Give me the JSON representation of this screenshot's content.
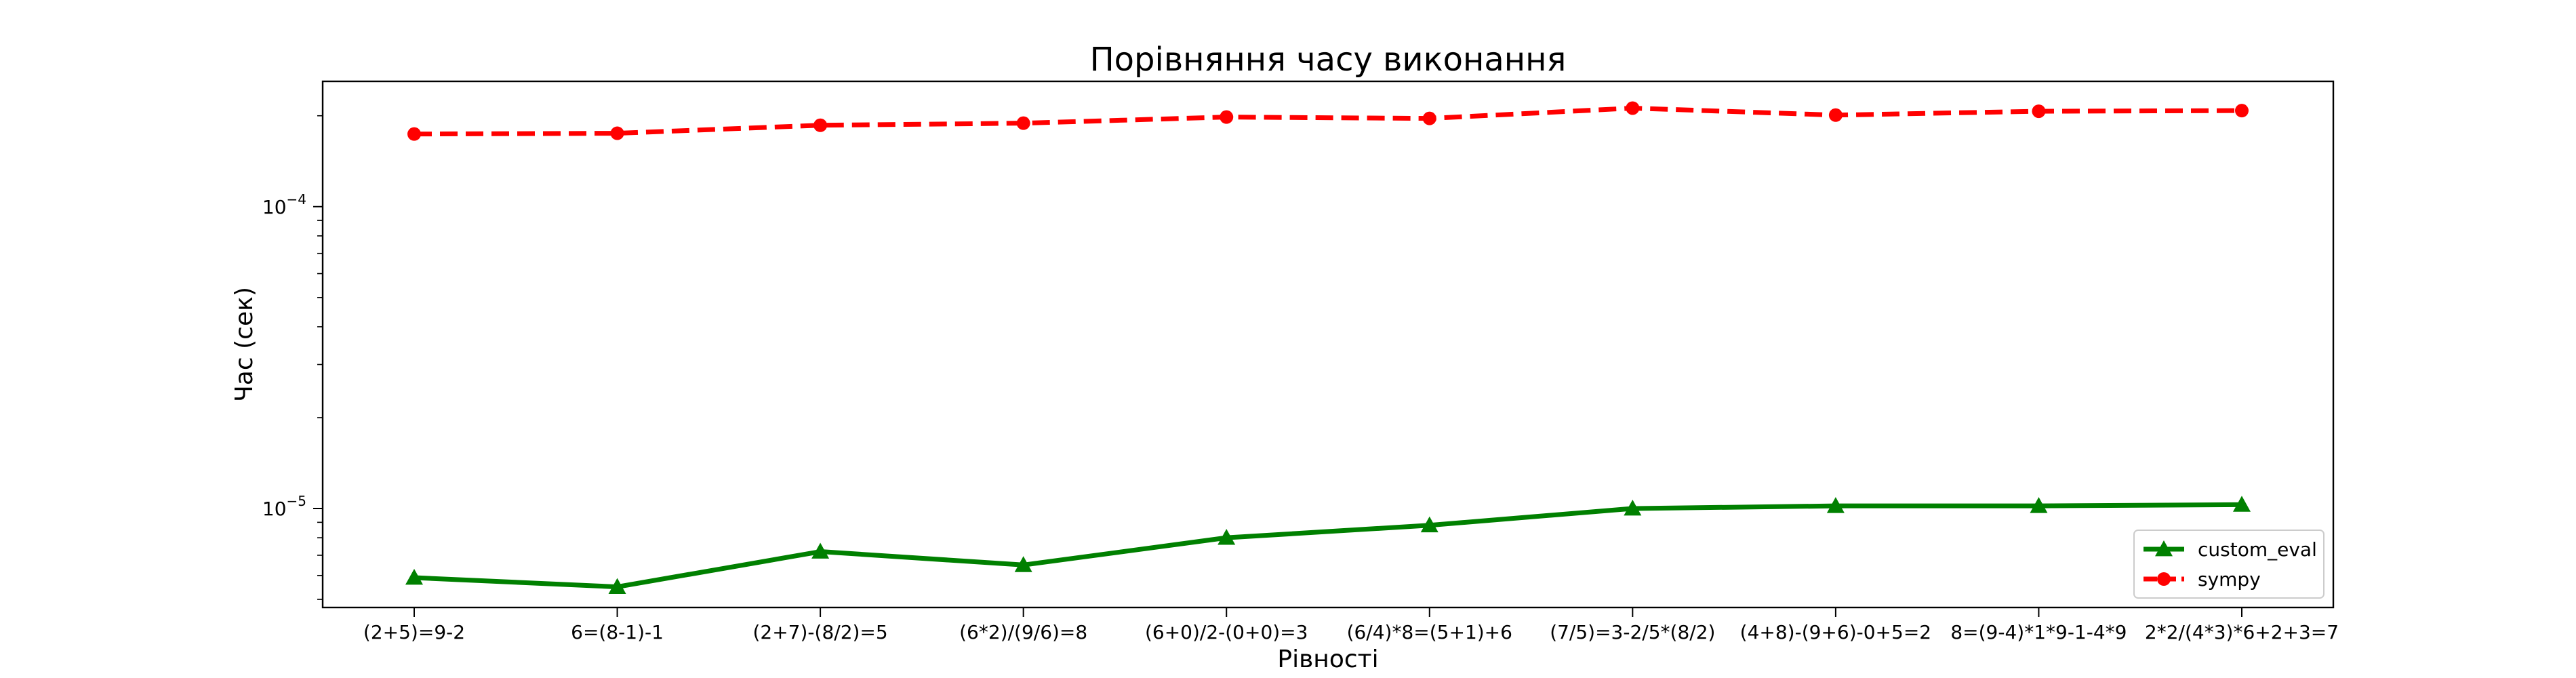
{
  "chart_data": {
    "type": "line",
    "title": "Порівняння часу виконання",
    "xlabel": "Рівності",
    "ylabel": "Час (сек)",
    "yscale": "log",
    "ylim": [
      4.7e-06,
      0.00026
    ],
    "y_ticks": [
      {
        "value": 1e-05,
        "base": "10",
        "exp": "−5"
      },
      {
        "value": 0.0001,
        "base": "10",
        "exp": "−4"
      }
    ],
    "categories": [
      "(2+5)=9-2",
      "6=(8-1)-1",
      "(2+7)-(8/2)=5",
      "(6*2)/(9/6)=8",
      "(6+0)/2-(0+0)=3",
      "(6/4)*8=(5+1)+6",
      "(7/5)=3-2/5*(8/2)",
      "(4+8)-(9+6)-0+5=2",
      "8=(9-4)*1*9-1-4*9",
      "2*2/(4*3)*6+2+3=7"
    ],
    "series": [
      {
        "name": "custom_eval",
        "color": "#008000",
        "marker": "triangle",
        "line": "solid",
        "values": [
          5.9e-06,
          5.5e-06,
          7.2e-06,
          6.5e-06,
          8e-06,
          8.8e-06,
          1e-05,
          1.02e-05,
          1.02e-05,
          1.03e-05
        ]
      },
      {
        "name": "sympy",
        "color": "#ff0000",
        "marker": "circle",
        "line": "dashed",
        "values": [
          0.000174,
          0.000175,
          0.000186,
          0.000189,
          0.000198,
          0.000196,
          0.000212,
          0.000201,
          0.000207,
          0.000208
        ]
      }
    ],
    "legend_position": "lower-right",
    "grid": false
  }
}
